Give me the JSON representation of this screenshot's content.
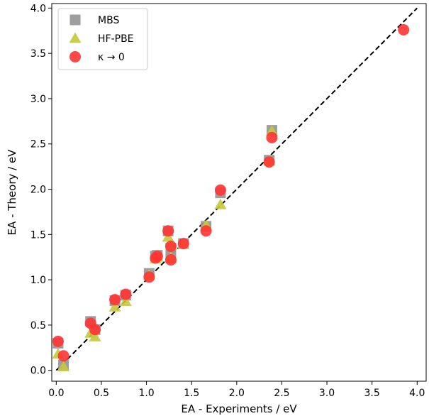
{
  "chart_data": {
    "type": "scatter",
    "title": "",
    "xlabel": "EA - Experiments / eV",
    "ylabel": "EA - Theory / eV",
    "xlim": [
      -0.05,
      4.1
    ],
    "ylim": [
      -0.12,
      4.05
    ],
    "xticks": [
      "0.0",
      "0.5",
      "1.0",
      "1.5",
      "2.0",
      "2.5",
      "3.0",
      "3.5",
      "4.0"
    ],
    "yticks": [
      "0.0",
      "0.5",
      "1.0",
      "1.5",
      "2.0",
      "2.5",
      "3.0",
      "3.5",
      "4.0"
    ],
    "grid": false,
    "legend_position": "top-left",
    "reference_line": {
      "style": "dashed",
      "x": [
        0.0,
        4.0
      ],
      "y": [
        0.0,
        4.0
      ],
      "color": "#000000"
    },
    "series": [
      {
        "name": "MBS",
        "marker": "square",
        "color": "#999999",
        "points": [
          [
            0.02,
            0.3
          ],
          [
            0.08,
            0.06
          ],
          [
            0.38,
            0.54
          ],
          [
            0.43,
            0.45
          ],
          [
            0.65,
            0.77
          ],
          [
            0.77,
            0.83
          ],
          [
            1.03,
            1.07
          ],
          [
            1.1,
            1.26
          ],
          [
            1.12,
            1.27
          ],
          [
            1.24,
            1.54
          ],
          [
            1.27,
            1.24
          ],
          [
            1.27,
            1.35
          ],
          [
            1.41,
            1.4
          ],
          [
            1.66,
            1.59
          ],
          [
            1.82,
            1.96
          ],
          [
            2.36,
            2.32
          ],
          [
            2.39,
            2.65
          ]
        ]
      },
      {
        "name": "HF-PBE",
        "marker": "triangle",
        "color": "#c8c83a",
        "points": [
          [
            0.02,
            0.18
          ],
          [
            0.08,
            0.04
          ],
          [
            0.38,
            0.41
          ],
          [
            0.43,
            0.37
          ],
          [
            0.65,
            0.7
          ],
          [
            0.77,
            0.76
          ],
          [
            1.03,
            1.05
          ],
          [
            1.1,
            1.23
          ],
          [
            1.12,
            1.25
          ],
          [
            1.24,
            1.47
          ],
          [
            1.27,
            1.24
          ],
          [
            1.27,
            1.38
          ],
          [
            1.41,
            1.4
          ],
          [
            1.66,
            1.6
          ],
          [
            1.82,
            1.83
          ],
          [
            2.36,
            2.31
          ],
          [
            2.39,
            2.64
          ]
        ]
      },
      {
        "name": "κ → 0",
        "marker": "circle",
        "color": "#ff3333",
        "points": [
          [
            0.02,
            0.32
          ],
          [
            0.08,
            0.16
          ],
          [
            0.38,
            0.52
          ],
          [
            0.43,
            0.45
          ],
          [
            0.65,
            0.78
          ],
          [
            0.77,
            0.84
          ],
          [
            1.03,
            1.03
          ],
          [
            1.1,
            1.24
          ],
          [
            1.12,
            1.26
          ],
          [
            1.24,
            1.54
          ],
          [
            1.27,
            1.22
          ],
          [
            1.27,
            1.37
          ],
          [
            1.41,
            1.4
          ],
          [
            1.66,
            1.54
          ],
          [
            1.82,
            1.99
          ],
          [
            2.36,
            2.3
          ],
          [
            2.39,
            2.57
          ],
          [
            3.85,
            3.76
          ]
        ]
      }
    ]
  }
}
